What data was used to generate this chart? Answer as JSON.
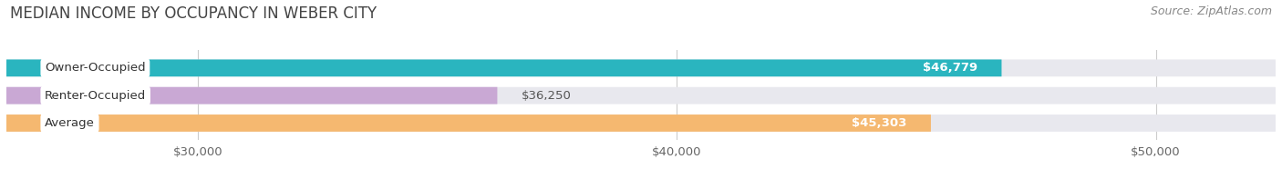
{
  "title": "MEDIAN INCOME BY OCCUPANCY IN WEBER CITY",
  "source": "Source: ZipAtlas.com",
  "categories": [
    "Owner-Occupied",
    "Renter-Occupied",
    "Average"
  ],
  "values": [
    46779,
    36250,
    45303
  ],
  "labels": [
    "$46,779",
    "$36,250",
    "$45,303"
  ],
  "bar_colors": [
    "#2ab5bf",
    "#c9a8d4",
    "#f5b870"
  ],
  "label_inside": [
    true,
    false,
    true
  ],
  "xlim_min": 26000,
  "xlim_max": 52500,
  "data_min": 26000,
  "data_max": 52500,
  "xticks": [
    30000,
    40000,
    50000
  ],
  "xtick_labels": [
    "$30,000",
    "$40,000",
    "$50,000"
  ],
  "bar_height": 0.62,
  "background_color": "#ffffff",
  "bar_bg_color": "#e8e8ee",
  "title_fontsize": 12,
  "source_fontsize": 9,
  "tick_fontsize": 9.5,
  "label_fontsize": 9.5,
  "cat_fontsize": 9.5
}
